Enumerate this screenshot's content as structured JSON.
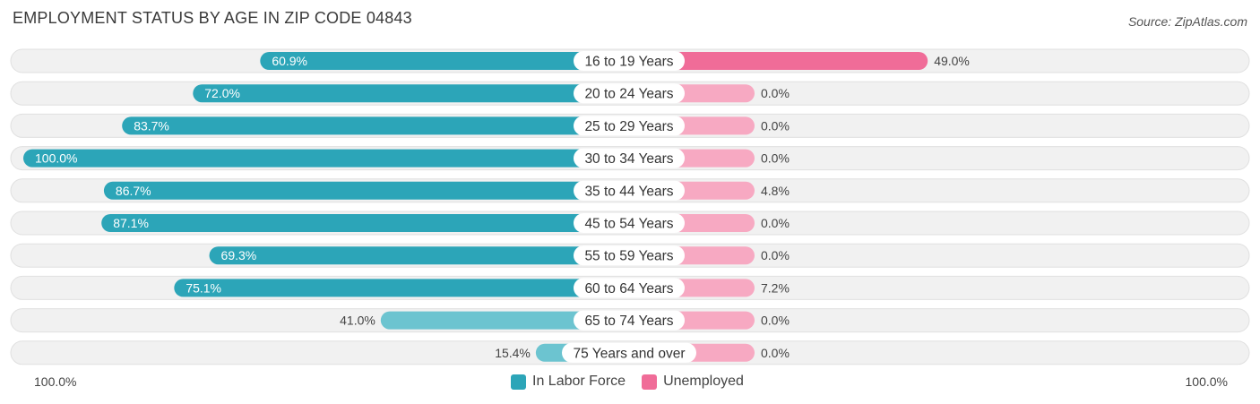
{
  "header": {
    "title": "EMPLOYMENT STATUS BY AGE IN ZIP CODE 04843",
    "source": "Source: ZipAtlas.com"
  },
  "axis": {
    "left_label": "100.0%",
    "right_label": "100.0%"
  },
  "colors": {
    "labor_force": "#2ca5b8",
    "labor_force_light": "#6cc4d0",
    "unemployed": "#f06c98",
    "unemployed_light": "#f7a9c2",
    "row_bg": "#f0f0f0"
  },
  "chart_data": {
    "type": "bar",
    "title": "EMPLOYMENT STATUS BY AGE IN ZIP CODE 04843",
    "categories": [
      "16 to 19 Years",
      "20 to 24 Years",
      "25 to 29 Years",
      "30 to 34 Years",
      "35 to 44 Years",
      "45 to 54 Years",
      "55 to 59 Years",
      "60 to 64 Years",
      "65 to 74 Years",
      "75 Years and over"
    ],
    "series": [
      {
        "name": "In Labor Force",
        "values": [
          60.9,
          72.0,
          83.7,
          100.0,
          86.7,
          87.1,
          69.3,
          75.1,
          41.0,
          15.4
        ],
        "labels": [
          "60.9%",
          "72.0%",
          "83.7%",
          "100.0%",
          "86.7%",
          "87.1%",
          "69.3%",
          "75.1%",
          "41.0%",
          "15.4%"
        ]
      },
      {
        "name": "Unemployed",
        "values": [
          49.0,
          0.0,
          0.0,
          0.0,
          4.8,
          0.0,
          0.0,
          7.2,
          0.0,
          0.0
        ],
        "labels": [
          "49.0%",
          "0.0%",
          "0.0%",
          "0.0%",
          "4.8%",
          "0.0%",
          "0.0%",
          "7.2%",
          "0.0%",
          "0.0%"
        ]
      }
    ],
    "xlim": [
      -100,
      100
    ],
    "legend": "bottom-center"
  }
}
